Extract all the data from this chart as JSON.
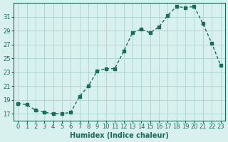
{
  "x": [
    0,
    1,
    2,
    3,
    4,
    5,
    6,
    7,
    8,
    9,
    10,
    11,
    12,
    13,
    14,
    15,
    16,
    17,
    18,
    19,
    20,
    21,
    22,
    23
  ],
  "y": [
    18.5,
    18.3,
    17.5,
    17.2,
    17.0,
    17.0,
    17.2,
    19.5,
    21.0,
    23.2,
    23.5,
    23.5,
    26.0,
    28.7,
    29.2,
    28.7,
    29.5,
    31.2,
    32.5,
    32.3,
    32.5,
    30.0,
    27.2,
    24.0
  ],
  "line_color": "#1a6b5a",
  "bg_color": "#d8f0ee",
  "grid_color": "#b0d8d4",
  "xlabel": "Humidex (Indice chaleur)",
  "ylim": [
    16,
    33
  ],
  "yticks": [
    17,
    19,
    21,
    23,
    25,
    27,
    29,
    31
  ],
  "xticks": [
    0,
    1,
    2,
    3,
    4,
    5,
    6,
    7,
    8,
    9,
    10,
    11,
    12,
    13,
    14,
    15,
    16,
    17,
    18,
    19,
    20,
    21,
    22,
    23
  ],
  "tick_color": "#1a6b5a",
  "label_fontsize": 7,
  "tick_fontsize": 6
}
